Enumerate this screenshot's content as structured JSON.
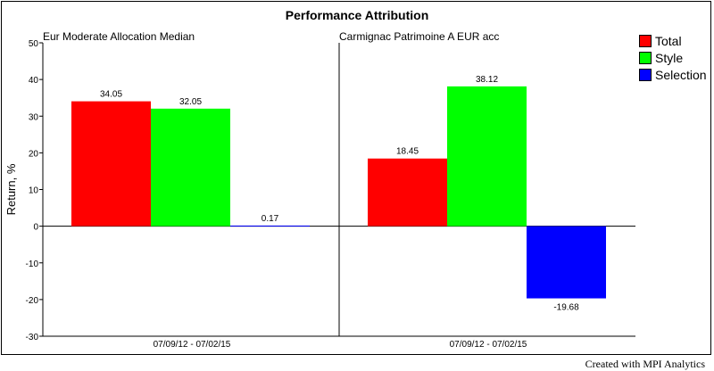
{
  "chart_data": {
    "type": "bar",
    "title": "Performance Attribution",
    "ylabel": "Return, %",
    "ylim": [
      -30,
      50
    ],
    "yticks": [
      -30,
      -20,
      -10,
      0,
      10,
      20,
      30,
      40,
      50
    ],
    "series": [
      {
        "name": "Total",
        "color": "#ff0000"
      },
      {
        "name": "Style",
        "color": "#00ff00"
      },
      {
        "name": "Selection",
        "color": "#0000ff"
      }
    ],
    "panels": [
      {
        "name": "Eur Moderate Allocation Median",
        "category": "07/09/12 - 07/02/15",
        "values": [
          34.05,
          32.05,
          0.17
        ],
        "labels": [
          "34.05",
          "32.05",
          "0.17"
        ]
      },
      {
        "name": "Carmignac Patrimoine A EUR acc",
        "category": "07/09/12 - 07/02/15",
        "values": [
          18.45,
          38.12,
          -19.68
        ],
        "labels": [
          "18.45",
          "38.12",
          "-19.68"
        ]
      }
    ],
    "legend_position": "top-right"
  },
  "footer": "Created with MPI Analytics"
}
